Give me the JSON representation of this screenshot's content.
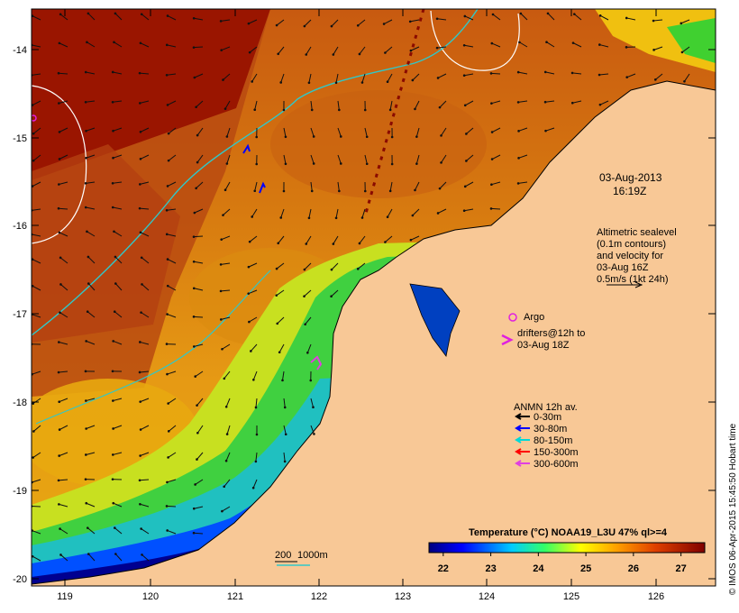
{
  "map": {
    "x_ticks": [
      "119",
      "120",
      "121",
      "122",
      "123",
      "124",
      "125",
      "126"
    ],
    "y_ticks": [
      "-14",
      "-15",
      "-16",
      "-17",
      "-18",
      "-19",
      "-20"
    ],
    "timestamp_line1": "03-Aug-2013",
    "timestamp_line2": "16:19Z",
    "altimetry": [
      "Altimetric sealevel",
      "(0.1m contours)",
      "and velocity for",
      "03-Aug 16Z",
      "0.5m/s (1kt 24h)"
    ],
    "argo_label": "Argo",
    "drifters": [
      "drifters@12h to",
      "03-Aug 18Z"
    ],
    "anmn_title": "ANMN 12h av.",
    "anmn_legend": [
      {
        "label": "0-30m",
        "color": "#000000"
      },
      {
        "label": "30-80m",
        "color": "#0000ff"
      },
      {
        "label": "80-150m",
        "color": "#00d8d8"
      },
      {
        "label": "150-300m",
        "color": "#ff0000"
      },
      {
        "label": "300-600m",
        "color": "#e040e0"
      }
    ],
    "colorbar_title": "Temperature (°C) NOAA19_L3U 47% ql>=4",
    "colorbar_ticks": [
      "22",
      "23",
      "24",
      "25",
      "26",
      "27"
    ],
    "colorbar_range": [
      21.7,
      27.5
    ],
    "scale_label": "200",
    "isobath_label": "1000m",
    "credit": "© IMOS 06-Apr-2015 15:45:50 Hobart time",
    "colors": {
      "land": "#f8c896",
      "isobath": "#30c8c8",
      "argo": "#e020e0",
      "warm": "#a01800",
      "cool": "#000090"
    }
  }
}
